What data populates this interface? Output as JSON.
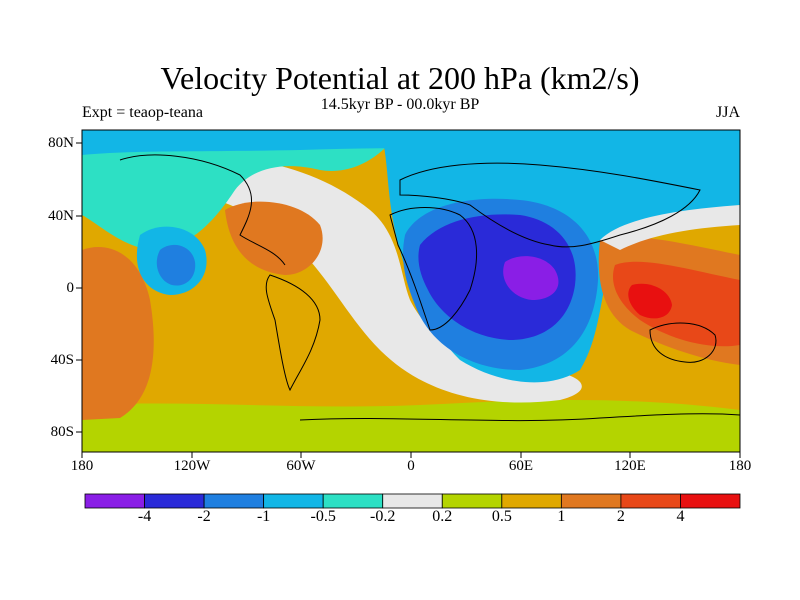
{
  "title": "Velocity Potential at 200 hPa (km2/s)",
  "subtitle": "14.5kyr BP - 00.0kyr BP",
  "experiment": "Expt = teaop-teana",
  "season": "JJA",
  "axes": {
    "lat_labels": [
      "80N",
      "40N",
      "0",
      "40S",
      "80S"
    ],
    "lon_labels": [
      "180",
      "120W",
      "60W",
      "0",
      "60E",
      "120E",
      "180"
    ]
  },
  "colorbar": {
    "colors": [
      "#8a1ee6",
      "#2a2ad8",
      "#1f7fe0",
      "#12b6e6",
      "#2de0c4",
      "#e8e8e8",
      "#b4d400",
      "#e0a800",
      "#e07820",
      "#e84818",
      "#e81010"
    ],
    "labels": [
      "-4",
      "-2",
      "-1",
      "-0.5",
      "-0.2",
      "0.2",
      "0.5",
      "1",
      "2",
      "4"
    ]
  },
  "colors": {
    "ocean_base": "#e0a800",
    "coastline": "#000000"
  }
}
